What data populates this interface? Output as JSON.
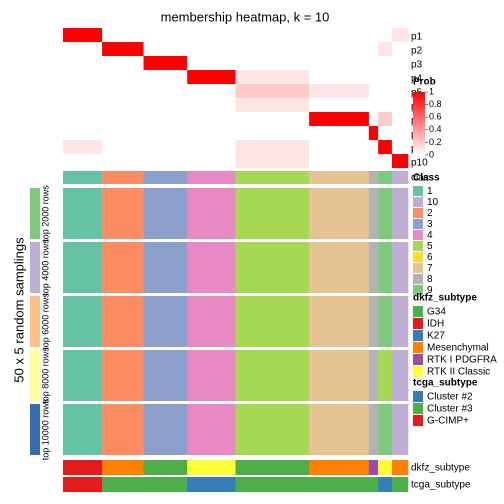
{
  "chart_data": {
    "type": "heatmap",
    "title": "membership heatmap, k = 10",
    "y_label": "50 x 5 random samplings",
    "segments": {
      "counts": [
        17,
        18,
        19,
        21,
        32,
        26,
        4,
        6,
        7
      ],
      "classes": [
        "1",
        "2",
        "3",
        "4",
        "5",
        "7",
        "8",
        "9",
        "10"
      ]
    },
    "membership": {
      "rows": [
        "p1",
        "p2",
        "p3",
        "p4",
        "p5",
        "p6",
        "p7",
        "p8",
        "p9",
        "p10"
      ],
      "values": [
        [
          1,
          0,
          0,
          0,
          0,
          0,
          0,
          0,
          0.1
        ],
        [
          0,
          1,
          0,
          0,
          0,
          0,
          0,
          0.1,
          0
        ],
        [
          0,
          0,
          1,
          0,
          0,
          0,
          0,
          0,
          0
        ],
        [
          0,
          0,
          0,
          1,
          0.1,
          0,
          0,
          0,
          0
        ],
        [
          0,
          0,
          0,
          0,
          0.2,
          0.1,
          0,
          0,
          0
        ],
        [
          0,
          0,
          0,
          0,
          0.1,
          0,
          0,
          0,
          0
        ],
        [
          0,
          0,
          0,
          0,
          0,
          1,
          0,
          0.2,
          0
        ],
        [
          0,
          0,
          0,
          0,
          0,
          0,
          1,
          0,
          0
        ],
        [
          0.1,
          0,
          0,
          0,
          0.1,
          0,
          0,
          1,
          0
        ],
        [
          0,
          0,
          0,
          0,
          0.1,
          0,
          0,
          0,
          1
        ]
      ]
    },
    "prob_legend": {
      "title": "Prob",
      "lim": [
        0,
        1
      ],
      "ticks": [
        0,
        0.2,
        0.4,
        0.6,
        0.8,
        1
      ],
      "low_color": "#ffffff",
      "high_color": "#ff0000"
    },
    "class_row_label": "class",
    "samplings": {
      "labels": [
        "top 2000 rows",
        "top 4000 rows",
        "top 6000 rows",
        "top 8000 rows",
        "top 10000 rows"
      ],
      "colors": [
        "#7fc97f",
        "#beaed4",
        "#fdc086",
        "#ffff99",
        "#386cb0"
      ],
      "classes": [
        [
          "1",
          "2",
          "3",
          "4",
          "5",
          "7",
          "8",
          "9",
          "10"
        ],
        [
          "1",
          "2",
          "3",
          "4",
          "5",
          "7",
          "8",
          "9",
          "10"
        ],
        [
          "1",
          "2",
          "3",
          "4",
          "5",
          "7",
          "8",
          "9",
          "10"
        ],
        [
          "1",
          "2",
          "3",
          "4",
          "5",
          "7",
          "8",
          "5",
          "10"
        ],
        [
          "1",
          "2",
          "3",
          "4",
          "5",
          "7",
          "8",
          "9",
          "10"
        ]
      ]
    },
    "class_legend": {
      "title": "Class",
      "labels": [
        "1",
        "10",
        "2",
        "3",
        "4",
        "5",
        "6",
        "7",
        "8",
        "9"
      ],
      "colors": [
        "#66c2a5",
        "#beaed4",
        "#fc8d62",
        "#8da0cb",
        "#e78ac3",
        "#a6d854",
        "#ffd92f",
        "#e5c494",
        "#b3b3b3",
        "#7fc97f"
      ]
    },
    "dkfz_legend": {
      "title": "dkfz_subtype",
      "labels": [
        "G34",
        "IDH",
        "K27",
        "Mesenchymal",
        "RTK I PDGFRA",
        "RTK II Classic"
      ],
      "colors": [
        "#4daf4a",
        "#e41a1c",
        "#377eb8",
        "#ff7f00",
        "#984ea3",
        "#ffff33"
      ]
    },
    "tcga_legend": {
      "title": "tcga_subtype",
      "labels": [
        "Cluster #2",
        "Cluster #3",
        "G-CIMP+"
      ],
      "colors": [
        "#377eb8",
        "#4daf4a",
        "#e41a1c"
      ]
    },
    "dkfz_subtype": [
      "IDH",
      "Mesenchymal",
      "G34",
      "RTK II Classic",
      "G34",
      "Mesenchymal",
      "RTK I PDGFRA",
      "RTK II Classic",
      "Mesenchymal"
    ],
    "tcga_subtype": [
      "G-CIMP+",
      "Cluster #3",
      "Cluster #3",
      "Cluster #2",
      "Cluster #3",
      "Cluster #3",
      "Cluster #3",
      "Cluster #2",
      "Cluster #3"
    ]
  }
}
